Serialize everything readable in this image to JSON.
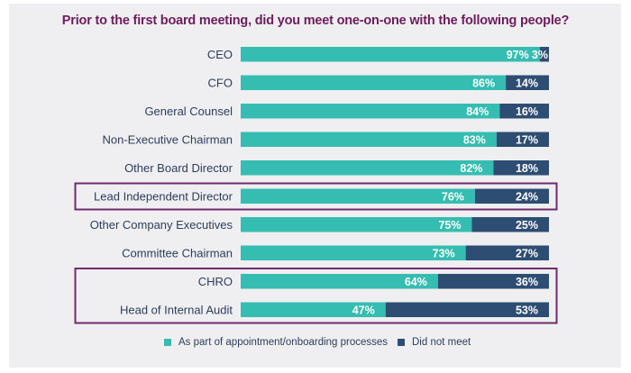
{
  "chart_data": {
    "type": "bar",
    "orientation": "horizontal",
    "stacked": true,
    "title": "Prior to the first board meeting, did you meet one-on-one with the following people?",
    "xlabel": "",
    "ylabel": "",
    "xlim": [
      0,
      100
    ],
    "grid": false,
    "legend_position": "bottom-center",
    "categories": [
      "CEO",
      "CFO",
      "General Counsel",
      "Non-Executive Chairman",
      "Other Board Director",
      "Lead Independent Director",
      "Other Company Executives",
      "Committee Chairman",
      "CHRO",
      "Head of Internal Audit"
    ],
    "series": [
      {
        "name": "As part of appointment/onboarding processes",
        "color": "#35bdb2",
        "values": [
          97,
          86,
          84,
          83,
          82,
          76,
          75,
          73,
          64,
          47
        ],
        "labels": [
          "97%",
          "86%",
          "84%",
          "83%",
          "82%",
          "76%",
          "75%",
          "73%",
          "64%",
          "47%"
        ]
      },
      {
        "name": "Did not meet",
        "color": "#2e4d73",
        "values": [
          3,
          14,
          16,
          17,
          18,
          24,
          25,
          27,
          36,
          53
        ],
        "labels": [
          "3%",
          "14%",
          "16%",
          "17%",
          "18%",
          "24%",
          "25%",
          "27%",
          "36%",
          "53%"
        ]
      }
    ],
    "highlight_groups": [
      {
        "categories": [
          "Lead Independent Director"
        ],
        "color": "#6f2b6e"
      },
      {
        "categories": [
          "CHRO",
          "Head of Internal Audit"
        ],
        "color": "#6f2b6e"
      }
    ]
  },
  "legend": {
    "items": [
      {
        "label": "As part of appointment/onboarding processes",
        "color": "#35bdb2"
      },
      {
        "label": "Did not meet",
        "color": "#2e4d73"
      }
    ]
  }
}
